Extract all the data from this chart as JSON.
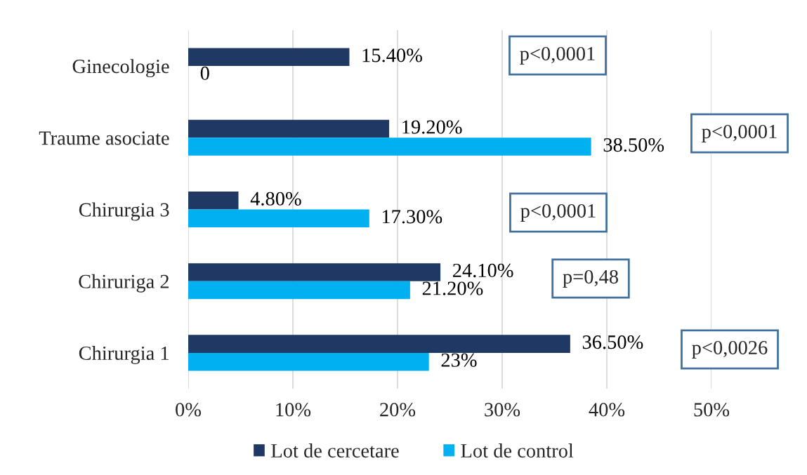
{
  "chart_data": {
    "type": "bar",
    "orientation": "horizontal",
    "categories": [
      "Ginecologie",
      "Traume asociate",
      "Chirurgia 3",
      "Chiruriga 2",
      "Chirurgia 1"
    ],
    "series": [
      {
        "name": "Lot de cercetare",
        "color": "#203864",
        "values": [
          15.4,
          19.2,
          4.8,
          24.1,
          36.5
        ],
        "value_labels": [
          "15.40%",
          "19.20%",
          "4.80%",
          "24.10%",
          "36.50%"
        ]
      },
      {
        "name": "Lot de control",
        "color": "#00b0f0",
        "values": [
          0,
          38.5,
          17.3,
          21.2,
          23
        ],
        "value_labels": [
          "0",
          "38.50%",
          "17.30%",
          "21.20%",
          "23%"
        ]
      }
    ],
    "xlim": [
      0,
      50
    ],
    "xticks": [
      {
        "value": 0,
        "label": "0%"
      },
      {
        "value": 10,
        "label": "10%"
      },
      {
        "value": 20,
        "label": "20%"
      },
      {
        "value": 30,
        "label": "30%"
      },
      {
        "value": 40,
        "label": "40%"
      },
      {
        "value": 50,
        "label": "50%"
      }
    ],
    "grid": "x",
    "legend": "bottom",
    "annotations": [
      "p<0,0001",
      "p<0,0001",
      "p<0,0001",
      "p=0,48",
      "p<0,0026"
    ]
  }
}
